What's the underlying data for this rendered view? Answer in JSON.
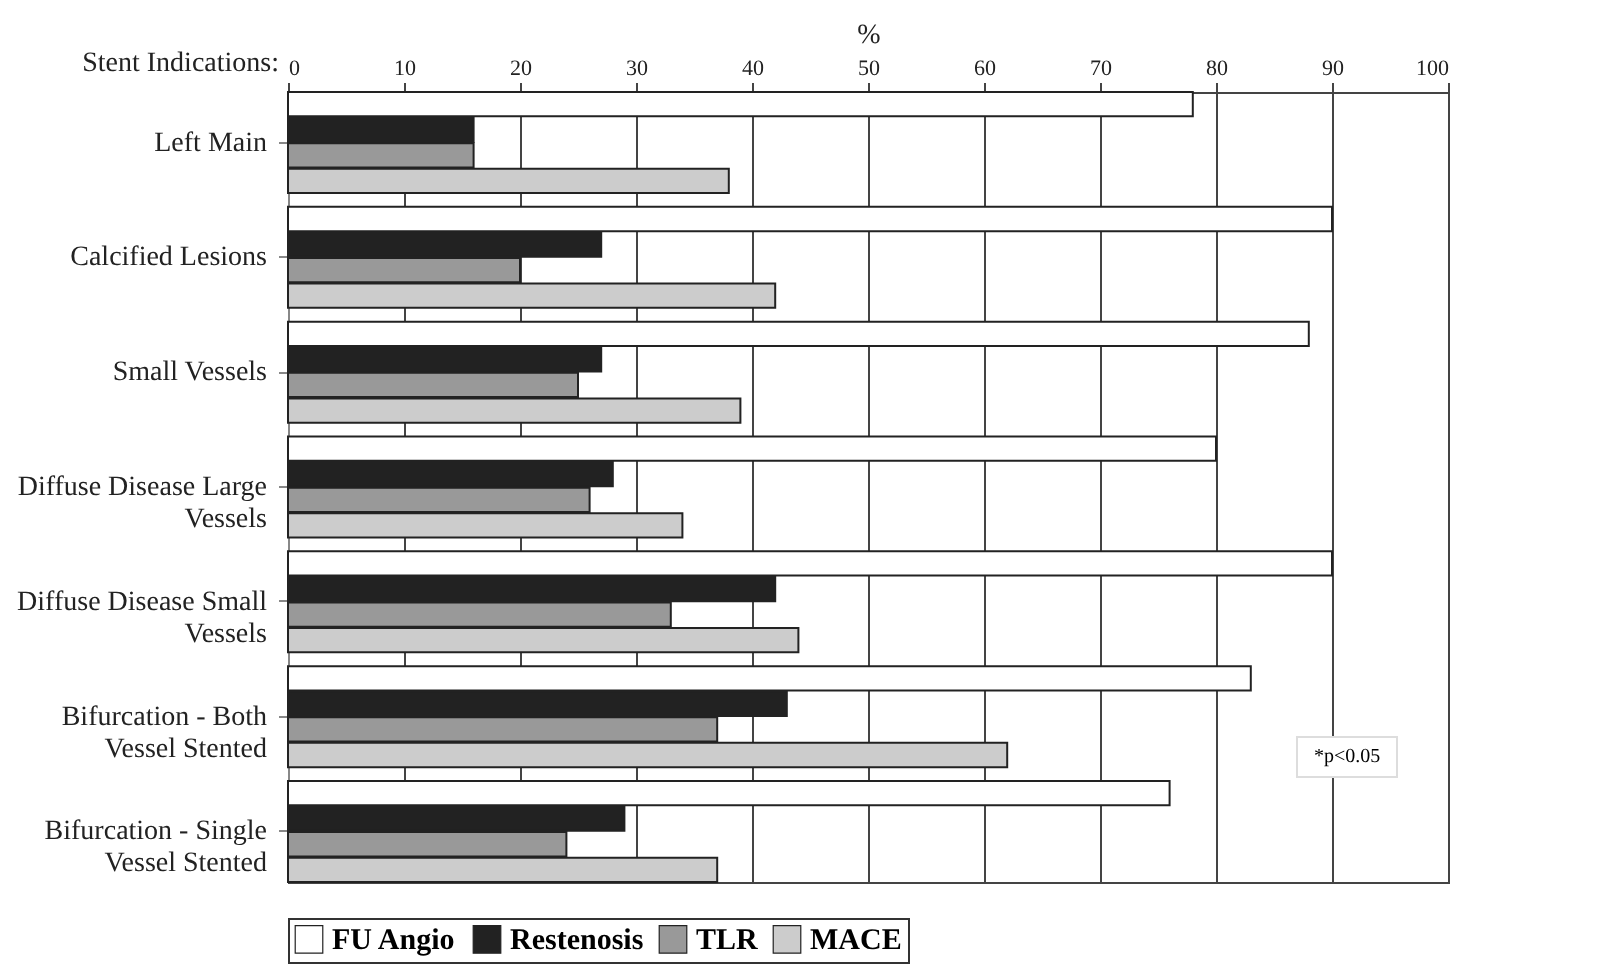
{
  "chart_data": {
    "type": "bar",
    "orientation": "horizontal",
    "xlabel": "%",
    "ylabel": "Stent Indications:",
    "categories": [
      "Left Main",
      "Calcified Lesions",
      "Small Vessels",
      "Diffuse Disease Large Vessels",
      "Diffuse Disease Small Vessels",
      "Bifurcation - Both Vessel Stented",
      "Bifurcation - Single Vessel Stented"
    ],
    "series": [
      {
        "name": "FU Angio",
        "color": "#ffffff",
        "values": [
          78,
          90,
          88,
          80,
          90,
          83,
          76
        ]
      },
      {
        "name": "Restenosis",
        "color": "#222222",
        "values": [
          16,
          27,
          27,
          28,
          42,
          43,
          29
        ]
      },
      {
        "name": "TLR",
        "color": "#999999",
        "values": [
          16,
          20,
          25,
          26,
          33,
          37,
          24
        ]
      },
      {
        "name": "MACE",
        "color": "#cccccc",
        "values": [
          38,
          42,
          39,
          34,
          44,
          62,
          37
        ]
      }
    ],
    "xlim": [
      0,
      100
    ],
    "xticks": [
      0,
      10,
      20,
      30,
      40,
      50,
      60,
      70,
      80,
      90,
      100
    ],
    "grid": "x",
    "legend": "bottom",
    "annotations": [
      "*p<0.05"
    ]
  }
}
